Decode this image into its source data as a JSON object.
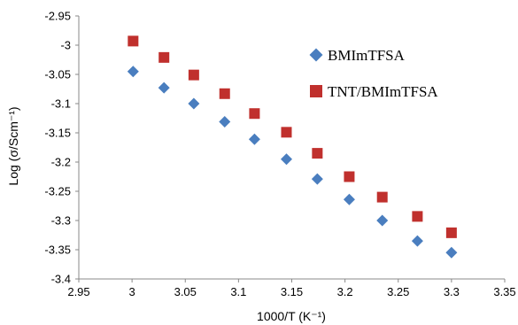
{
  "chart_data": {
    "type": "scatter",
    "title": "",
    "xlabel": "1000/T (K⁻¹)",
    "ylabel": "Log (σ/Scm⁻¹)",
    "xlim": [
      2.95,
      3.35
    ],
    "ylim": [
      -3.4,
      -2.95
    ],
    "x_ticks": [
      2.95,
      3,
      3.05,
      3.1,
      3.15,
      3.2,
      3.25,
      3.3,
      3.35
    ],
    "x_tick_labels": [
      "2.95",
      "3",
      "3.05",
      "3.1",
      "3.15",
      "3.2",
      "3.25",
      "3.3",
      "3.35"
    ],
    "y_ticks": [
      -2.95,
      -3,
      -3.05,
      -3.1,
      -3.15,
      -3.2,
      -3.25,
      -3.3,
      -3.35,
      -3.4
    ],
    "y_tick_labels": [
      "-2.95",
      "-3",
      "-3.05",
      "-3.1",
      "-3.15",
      "-3.2",
      "-3.25",
      "-3.3",
      "-3.35",
      "-3.4"
    ],
    "grid": false,
    "legend_position": "top-right",
    "series": [
      {
        "name": "BMImTFSA",
        "marker": "diamond",
        "color": "#4a7ebf",
        "x": [
          3.001,
          3.03,
          3.058,
          3.087,
          3.115,
          3.145,
          3.174,
          3.204,
          3.235,
          3.268,
          3.3
        ],
        "y": [
          -3.045,
          -3.073,
          -3.1,
          -3.131,
          -3.161,
          -3.195,
          -3.229,
          -3.264,
          -3.3,
          -3.335,
          -3.355
        ]
      },
      {
        "name": "TNT/BMImTFSA",
        "marker": "square",
        "color": "#c0302d",
        "x": [
          3.001,
          3.03,
          3.058,
          3.087,
          3.115,
          3.145,
          3.174,
          3.204,
          3.235,
          3.268,
          3.3
        ],
        "y": [
          -2.993,
          -3.021,
          -3.051,
          -3.083,
          -3.117,
          -3.149,
          -3.185,
          -3.225,
          -3.26,
          -3.293,
          -3.321
        ]
      }
    ]
  }
}
